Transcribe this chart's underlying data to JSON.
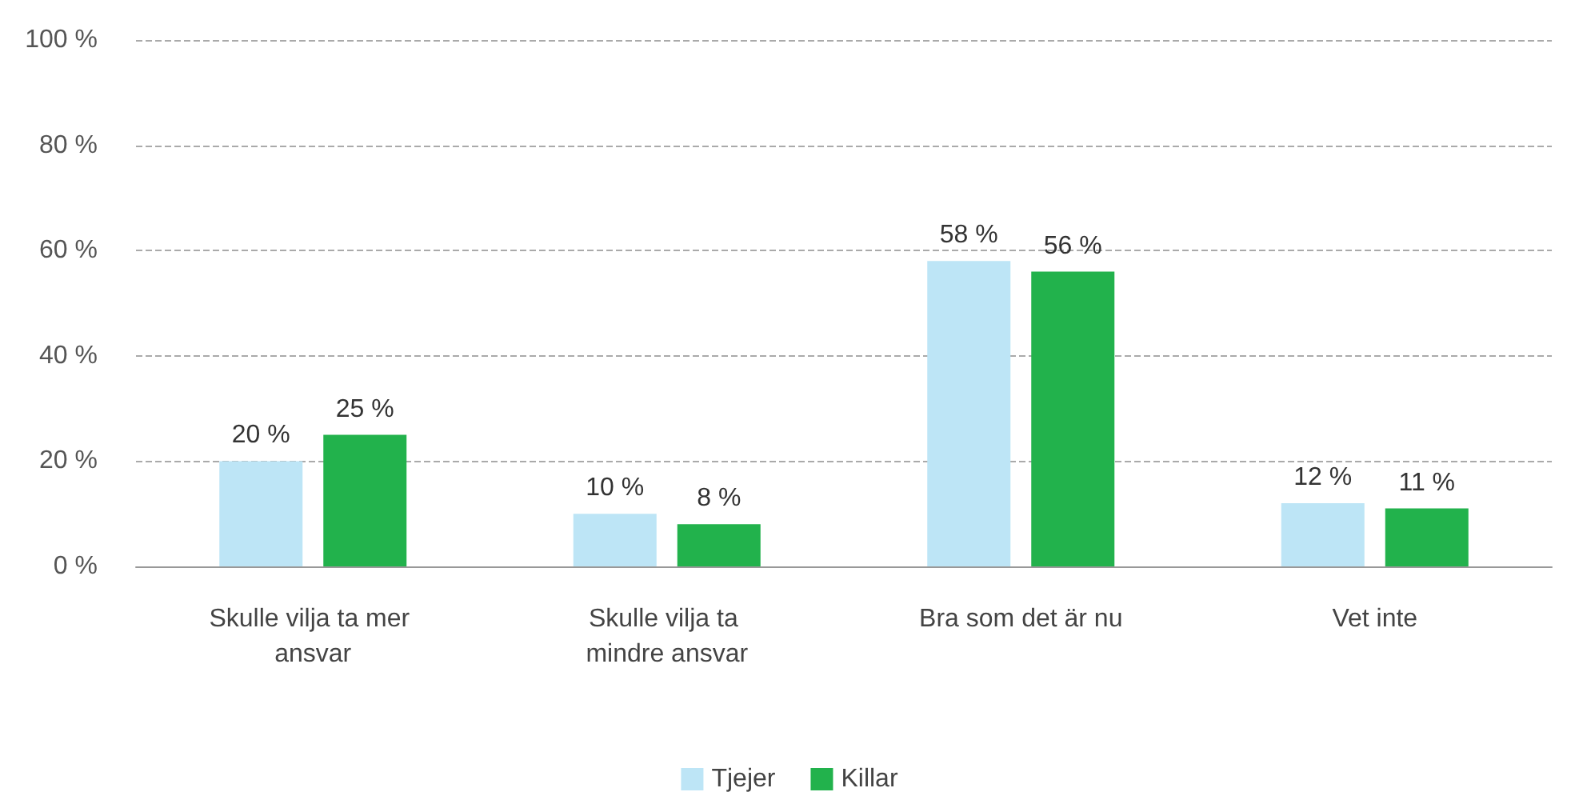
{
  "chart_data": {
    "type": "bar",
    "categories": [
      "Skulle vilja ta mer ansvar",
      "Skulle vilja ta mindre ansvar",
      "Bra som det är nu",
      "Vet inte"
    ],
    "series": [
      {
        "name": "Tjejer",
        "color": "#bde5f6",
        "values": [
          20,
          10,
          58,
          12
        ],
        "value_labels": [
          "20 %",
          "10 %",
          "58 %",
          "12 %"
        ]
      },
      {
        "name": "Killar",
        "color": "#22b24c",
        "values": [
          25,
          8,
          56,
          11
        ],
        "value_labels": [
          "25 %",
          "8 %",
          "56 %",
          "11 %"
        ]
      }
    ],
    "ylim": [
      0,
      100
    ],
    "yticks": [
      {
        "value": 0,
        "label": "0 %"
      },
      {
        "value": 20,
        "label": "20 %"
      },
      {
        "value": 40,
        "label": "40 %"
      },
      {
        "value": 60,
        "label": "60 %"
      },
      {
        "value": 80,
        "label": "80 %"
      },
      {
        "value": 100,
        "label": "100 %"
      }
    ],
    "grid": "y",
    "legend": "bottom"
  }
}
